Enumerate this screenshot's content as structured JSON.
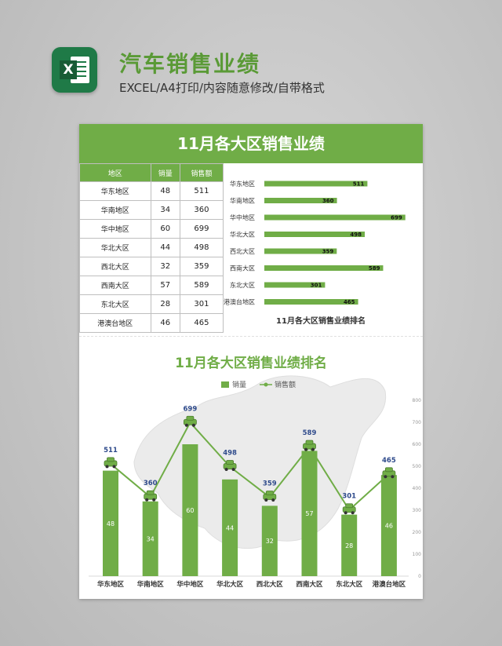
{
  "header": {
    "title": "汽车销售业绩",
    "subtitle": "EXCEL/A4打印/内容随意修改/自带格式",
    "icon": "excel-icon",
    "icon_letter": "X"
  },
  "sheet": {
    "banner": "11月各大区销售业绩",
    "table": {
      "headers": [
        "地区",
        "销量",
        "销售额"
      ],
      "rows": [
        [
          "华东地区",
          "48",
          "511"
        ],
        [
          "华南地区",
          "34",
          "360"
        ],
        [
          "华中地区",
          "60",
          "699"
        ],
        [
          "华北大区",
          "44",
          "498"
        ],
        [
          "西北大区",
          "32",
          "359"
        ],
        [
          "西南大区",
          "57",
          "589"
        ],
        [
          "东北大区",
          "28",
          "301"
        ],
        [
          "港澳台地区",
          "46",
          "465"
        ]
      ]
    }
  },
  "colors": {
    "accent": "#70ad47",
    "label_blue": "#2e4a8b",
    "axis_gray": "#999999"
  },
  "chart_data": [
    {
      "type": "bar",
      "orientation": "horizontal",
      "title": "11月各大区销售业绩排名",
      "categories": [
        "华东地区",
        "华南地区",
        "华中地区",
        "华北大区",
        "西北大区",
        "西南大区",
        "东北大区",
        "港澳台地区"
      ],
      "values": [
        511,
        360,
        699,
        498,
        359,
        589,
        301,
        465
      ],
      "data_labels": true
    },
    {
      "type": "bar",
      "combo": "bar+line",
      "title": "11月各大区销售业绩排名",
      "categories": [
        "华东地区",
        "华南地区",
        "华中地区",
        "华北大区",
        "西北大区",
        "西南大区",
        "东北大区",
        "港澳台地区"
      ],
      "series": [
        {
          "name": "销量",
          "type": "bar",
          "values": [
            48,
            34,
            60,
            44,
            32,
            57,
            28,
            46
          ]
        },
        {
          "name": "销售额",
          "type": "line",
          "values": [
            511,
            360,
            699,
            498,
            359,
            589,
            301,
            465
          ]
        }
      ],
      "bar_ylim": [
        0,
        80
      ],
      "line_ylim": [
        0,
        800
      ],
      "right_ticks": [
        "0",
        "100",
        "200",
        "300",
        "400",
        "500",
        "600",
        "700",
        "800"
      ],
      "legend": "top-center",
      "background": "china-map-watermark",
      "marker_icon": "car-icon"
    }
  ]
}
